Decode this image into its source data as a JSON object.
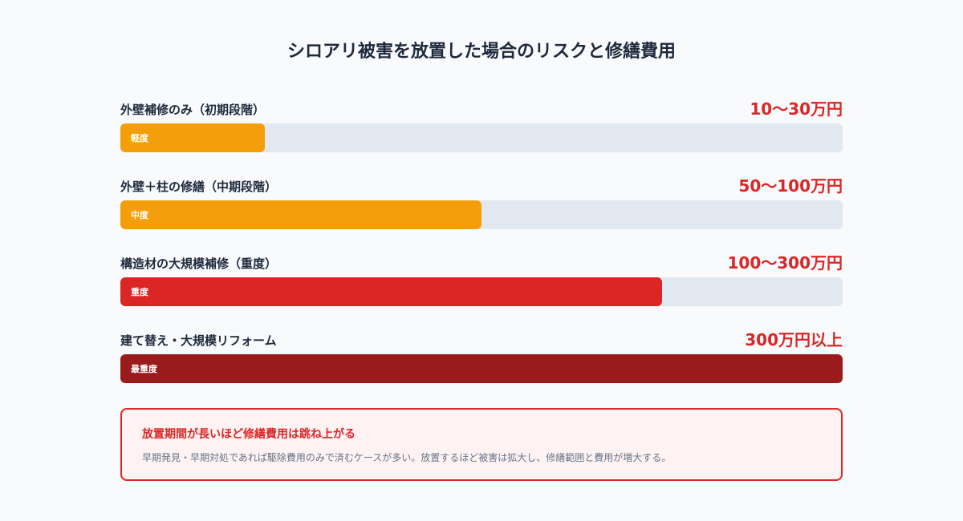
{
  "chart_data": {
    "type": "bar",
    "orientation": "horizontal",
    "title": "シロアリ被害を放置した場合のリスクと修繕費用",
    "categories": [
      "外壁補修のみ（初期段階）",
      "外壁＋柱の修繕（中期段階）",
      "構造材の大規模補修（重度）",
      "建て替え・大規模リフォーム"
    ],
    "series": [
      {
        "values": [
          0.2,
          0.5,
          0.75,
          1.0
        ]
      }
    ],
    "bars": [
      {
        "label": "外壁補修のみ（初期段階）",
        "cost": "10〜30万円",
        "severity": "軽度",
        "level": 0.2,
        "color": "#f59e0b"
      },
      {
        "label": "外壁＋柱の修繕（中期段階）",
        "cost": "50〜100万円",
        "severity": "中度",
        "level": 0.5,
        "color": "#f59e0b"
      },
      {
        "label": "構造材の大規模補修（重度）",
        "cost": "100〜300万円",
        "severity": "重度",
        "level": 0.75,
        "color": "#dc2626"
      },
      {
        "label": "建て替え・大規模リフォーム",
        "cost": "300万円以上",
        "severity": "最重度",
        "level": 1.0,
        "color": "#991b1b"
      }
    ],
    "xlim": [
      0,
      1
    ],
    "grid": false,
    "track_color": "#e2e8f0"
  },
  "note": {
    "title": "放置期間が長いほど修繕費用は跳ね上がる",
    "body": "早期発見・早期対処であれば駆除費用のみで済むケースが多い。放置するほど被害は拡大し、修繕範囲と費用が増大する。",
    "accent": "#dc2626"
  }
}
